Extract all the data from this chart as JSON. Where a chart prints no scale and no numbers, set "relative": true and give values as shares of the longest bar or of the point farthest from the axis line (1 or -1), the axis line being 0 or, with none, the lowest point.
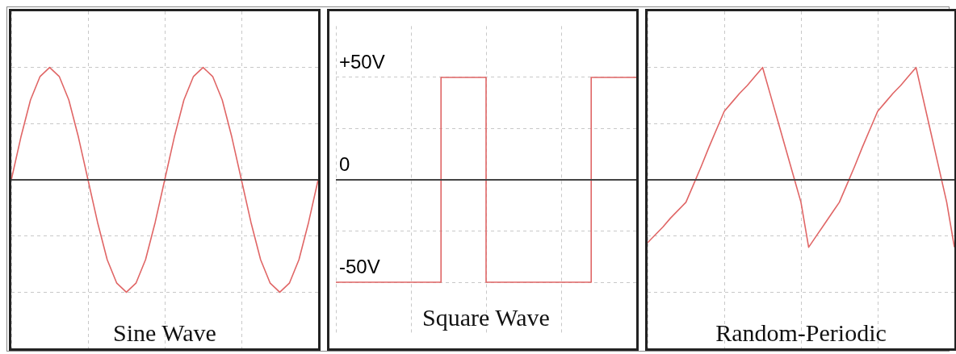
{
  "chart_data": [
    {
      "type": "line",
      "title": "Sine Wave",
      "relative": true,
      "grid": true,
      "tick_labels": false,
      "categories": [
        null,
        null,
        null,
        null,
        null,
        null,
        null,
        null,
        null,
        null,
        null,
        null,
        null,
        null,
        null,
        null,
        null,
        null,
        null,
        null,
        null,
        null,
        null,
        null,
        null,
        null,
        null,
        null,
        null,
        null,
        null,
        null,
        null
      ],
      "series": [
        {
          "color": "#e06666",
          "values": [
            0,
            0.38,
            0.71,
            0.92,
            1,
            0.92,
            0.71,
            0.38,
            0,
            -0.38,
            -0.71,
            -0.92,
            -1,
            -0.92,
            -0.71,
            -0.38,
            0,
            0.38,
            0.71,
            0.92,
            1,
            0.92,
            0.71,
            0.38,
            0,
            -0.38,
            -0.71,
            -0.92,
            -1,
            -0.92,
            -0.71,
            -0.38,
            0
          ]
        }
      ]
    },
    {
      "type": "line",
      "title": "Square Wave",
      "grid": true,
      "tick_labels": "y",
      "ylim": [
        -75,
        75
      ],
      "yticks": [
        {
          "value": -50,
          "label": "-50V"
        },
        {
          "value": -25,
          "label": null
        },
        0,
        {
          "value": 25,
          "label": null
        },
        {
          "value": 50,
          "label": "+50V"
        }
      ],
      "categories": [
        null,
        null,
        null,
        null,
        null,
        null,
        null,
        null,
        null,
        null,
        null,
        null,
        null,
        null,
        null,
        null,
        null,
        null,
        null,
        null,
        null
      ],
      "series": [
        {
          "type": "step",
          "color": "#e06666",
          "values": [
            -50,
            -50,
            -50,
            -50,
            -50,
            -50,
            -50,
            50,
            50,
            50,
            -50,
            -50,
            -50,
            -50,
            -50,
            -50,
            -50,
            50,
            50,
            50,
            50
          ]
        }
      ]
    },
    {
      "type": "line",
      "title": "Random-Periodic",
      "relative": true,
      "grid": true,
      "tick_labels": false,
      "categories": [
        null,
        null,
        null,
        null,
        null,
        null,
        null,
        null,
        null,
        null,
        null,
        null,
        null,
        null,
        null,
        null,
        null,
        null,
        null,
        null,
        null,
        null,
        null,
        null,
        null,
        null,
        null,
        null,
        null,
        null,
        null,
        null,
        null,
        null,
        null,
        null,
        null,
        null,
        null,
        null,
        null
      ],
      "series": [
        {
          "color": "#e06666",
          "values": [
            -0.56,
            -0.49,
            -0.42,
            -0.34,
            -0.27,
            -0.2,
            -0.04,
            0.12,
            0.29,
            0.45,
            0.61,
            0.69,
            0.77,
            0.84,
            0.92,
            1,
            0.76,
            0.52,
            0.28,
            0.04,
            -0.2,
            -0.6,
            -0.5,
            -0.4,
            -0.3,
            -0.2,
            -0.04,
            0.12,
            0.29,
            0.45,
            0.61,
            0.69,
            0.77,
            0.84,
            0.92,
            1,
            0.7,
            0.4,
            0.1,
            -0.2,
            -0.6
          ]
        }
      ]
    }
  ]
}
